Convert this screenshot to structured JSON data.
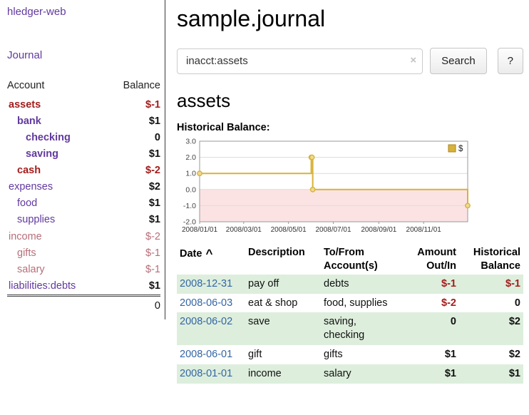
{
  "colors": {
    "link_purple": "#61399f",
    "negative_strong": "#a31d1d",
    "negative_soft": "#b76e79",
    "date_blue": "#3465a4",
    "row_green": "#ddeedd"
  },
  "sidebar": {
    "app_title": "hledger-web",
    "nav_journal": "Journal",
    "col_account": "Account",
    "col_balance": "Balance",
    "accounts": [
      {
        "name": "assets",
        "balance": "$-1",
        "indent": 0,
        "bold": true,
        "neg": "strong"
      },
      {
        "name": "bank",
        "balance": "$1",
        "indent": 1,
        "bold": true,
        "neg": null
      },
      {
        "name": "checking",
        "balance": "0",
        "indent": 2,
        "bold": true,
        "neg": null
      },
      {
        "name": "saving",
        "balance": "$1",
        "indent": 2,
        "bold": true,
        "neg": null
      },
      {
        "name": "cash",
        "balance": "$-2",
        "indent": 1,
        "bold": true,
        "neg": "strong"
      },
      {
        "name": "expenses",
        "balance": "$2",
        "indent": 0,
        "bold": false,
        "neg": null
      },
      {
        "name": "food",
        "balance": "$1",
        "indent": 1,
        "bold": false,
        "neg": null
      },
      {
        "name": "supplies",
        "balance": "$1",
        "indent": 1,
        "bold": false,
        "neg": null
      },
      {
        "name": "income",
        "balance": "$-2",
        "indent": 0,
        "bold": false,
        "neg": "soft"
      },
      {
        "name": "gifts",
        "balance": "$-1",
        "indent": 1,
        "bold": false,
        "neg": "soft"
      },
      {
        "name": "salary",
        "balance": "$-1",
        "indent": 1,
        "bold": false,
        "neg": "soft"
      },
      {
        "name": "liabilities:debts",
        "balance": "$1",
        "indent": 0,
        "bold": false,
        "neg": null
      }
    ],
    "total": "0"
  },
  "main": {
    "page_title": "sample.journal",
    "search": {
      "value": "inacct:assets",
      "clear_icon": "×",
      "submit_label": "Search",
      "help_label": "?"
    },
    "account_heading": "assets",
    "chart_label": "Historical Balance:"
  },
  "chart_data": {
    "type": "line",
    "step": true,
    "title": "Historical Balance",
    "legend_label": "$",
    "legend_position": "top-right",
    "ylim": [
      -2.0,
      3.0
    ],
    "y_ticks": [
      3.0,
      2.0,
      1.0,
      0.0,
      -1.0,
      -2.0
    ],
    "x_range": [
      0,
      365
    ],
    "x_ticks": [
      {
        "x": 0,
        "label": "2008/01/01"
      },
      {
        "x": 60,
        "label": "2008/03/01"
      },
      {
        "x": 121,
        "label": "2008/05/01"
      },
      {
        "x": 182,
        "label": "2008/07/01"
      },
      {
        "x": 244,
        "label": "2008/09/01"
      },
      {
        "x": 305,
        "label": "2008/11/01"
      }
    ],
    "points": [
      {
        "date": "2008-01-01",
        "x": 0,
        "y": 1
      },
      {
        "date": "2008-06-01",
        "x": 152,
        "y": 2
      },
      {
        "date": "2008-06-02",
        "x": 153,
        "y": 2
      },
      {
        "date": "2008-06-03",
        "x": 154,
        "y": 0
      },
      {
        "date": "2008-12-31",
        "x": 365,
        "y": -1
      }
    ],
    "shade_below_zero": true,
    "grid": true,
    "colors": {
      "line": "#d9b23a",
      "marker_fill": "#eed98f",
      "below_zero_fill": "#fce3e3",
      "grid": "#dcdcdc",
      "border": "#999999",
      "swatch_border": "#a8871f"
    }
  },
  "register": {
    "headers": {
      "date": "Date",
      "sort_indicator": "^",
      "description": "Description",
      "account_line1": "To/From",
      "account_line2": "Account(s)",
      "amount_line1": "Amount",
      "amount_line2": "Out/In",
      "balance_line1": "Historical",
      "balance_line2": "Balance"
    },
    "rows": [
      {
        "date": "2008-12-31",
        "description": "pay off",
        "accounts": "debts",
        "amount": "$-1",
        "amount_neg": true,
        "balance": "$-1",
        "balance_neg": true,
        "shaded": true
      },
      {
        "date": "2008-06-03",
        "description": "eat & shop",
        "accounts": "food, supplies",
        "amount": "$-2",
        "amount_neg": true,
        "balance": "0",
        "balance_neg": false,
        "shaded": false
      },
      {
        "date": "2008-06-02",
        "description": "save",
        "accounts": "saving,\nchecking",
        "amount": "0",
        "amount_neg": false,
        "balance": "$2",
        "balance_neg": false,
        "shaded": true
      },
      {
        "date": "2008-06-01",
        "description": "gift",
        "accounts": "gifts",
        "amount": "$1",
        "amount_neg": false,
        "balance": "$2",
        "balance_neg": false,
        "shaded": false
      },
      {
        "date": "2008-01-01",
        "description": "income",
        "accounts": "salary",
        "amount": "$1",
        "amount_neg": false,
        "balance": "$1",
        "balance_neg": false,
        "shaded": true
      }
    ]
  }
}
